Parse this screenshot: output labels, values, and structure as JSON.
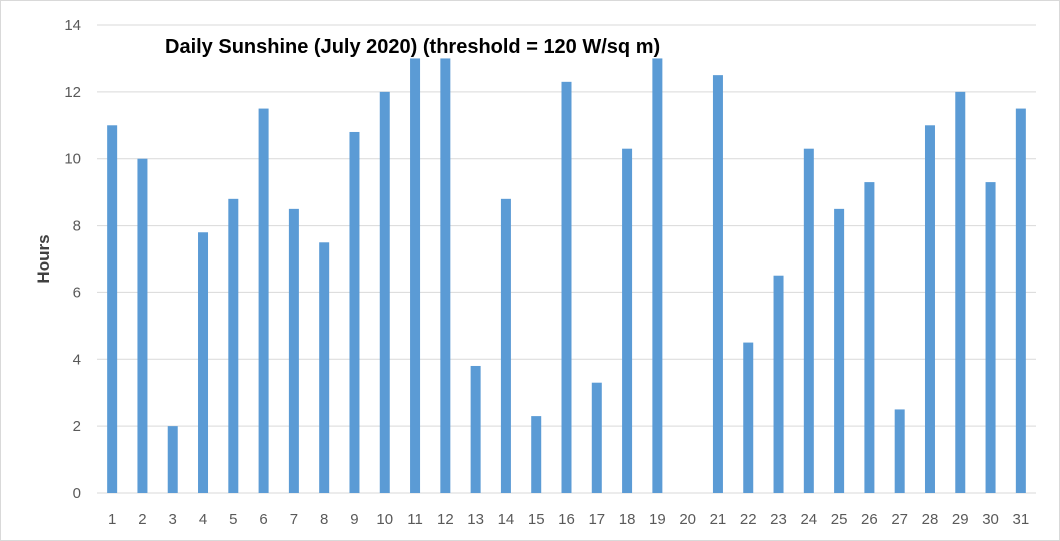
{
  "chart_data": {
    "type": "bar",
    "title": "Daily Sunshine (July 2020) (threshold = 120 W/sq m)",
    "xlabel": "",
    "ylabel": "Hours",
    "categories": [
      "1",
      "2",
      "3",
      "4",
      "5",
      "6",
      "7",
      "8",
      "9",
      "10",
      "11",
      "12",
      "13",
      "14",
      "15",
      "16",
      "17",
      "18",
      "19",
      "20",
      "21",
      "22",
      "23",
      "24",
      "25",
      "26",
      "27",
      "28",
      "29",
      "30",
      "31"
    ],
    "values": [
      11.0,
      10.0,
      2.0,
      7.8,
      8.8,
      11.5,
      8.5,
      7.5,
      10.8,
      12.0,
      13.0,
      13.0,
      3.8,
      8.8,
      2.3,
      12.3,
      3.3,
      10.3,
      13.0,
      0.0,
      12.5,
      4.5,
      6.5,
      10.3,
      8.5,
      9.3,
      2.5,
      11.0,
      12.0,
      9.3,
      11.5
    ],
    "ylim": [
      0,
      14
    ],
    "yticks": [
      0,
      2,
      4,
      6,
      8,
      10,
      12,
      14
    ],
    "grid": true,
    "legend": "none",
    "bar_color": "#5b9bd5",
    "grid_color": "#d9d9d9"
  }
}
